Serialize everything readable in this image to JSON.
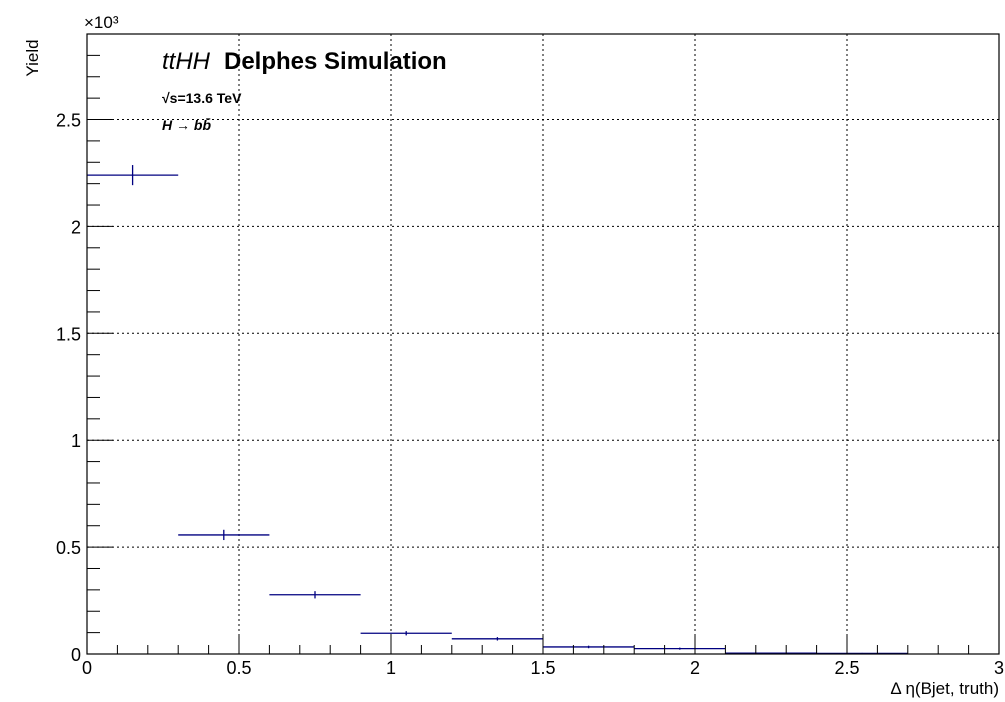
{
  "chart_data": {
    "type": "histogram",
    "title_italic": "ttHH",
    "title_bold": "Delphes Simulation",
    "energy_label": "√s=13.6 TeV",
    "decay_label": "H → bb̄",
    "xlabel": "Δ η(Bjet, truth)",
    "ylabel": "Yield",
    "y_exponent_label": "×10³",
    "xlim": [
      0,
      3
    ],
    "ylim": [
      0,
      2.9
    ],
    "x_ticks": [
      0,
      0.5,
      1,
      1.5,
      2,
      2.5,
      3
    ],
    "x_tick_labels": [
      "0",
      "0.5",
      "1",
      "1.5",
      "2",
      "2.5",
      "3"
    ],
    "y_ticks": [
      0,
      0.5,
      1,
      1.5,
      2,
      2.5
    ],
    "y_tick_labels": [
      "0",
      "0.5",
      "1",
      "1.5",
      "2",
      "2.5"
    ],
    "grid": true,
    "series": [
      {
        "color": "#000080",
        "bins": [
          {
            "x_low": 0.0,
            "x_high": 0.3,
            "value": 2.24,
            "err": 0.047
          },
          {
            "x_low": 0.3,
            "x_high": 0.6,
            "value": 0.557,
            "err": 0.024
          },
          {
            "x_low": 0.6,
            "x_high": 0.9,
            "value": 0.277,
            "err": 0.017
          },
          {
            "x_low": 0.9,
            "x_high": 1.2,
            "value": 0.097,
            "err": 0.01
          },
          {
            "x_low": 1.2,
            "x_high": 1.5,
            "value": 0.071,
            "err": 0.008
          },
          {
            "x_low": 1.5,
            "x_high": 1.8,
            "value": 0.033,
            "err": 0.006
          },
          {
            "x_low": 1.8,
            "x_high": 2.1,
            "value": 0.025,
            "err": 0.005
          },
          {
            "x_low": 2.1,
            "x_high": 2.4,
            "value": 0.004,
            "err": 0.002
          },
          {
            "x_low": 2.4,
            "x_high": 2.7,
            "value": 0.003,
            "err": 0.002
          }
        ]
      }
    ]
  }
}
